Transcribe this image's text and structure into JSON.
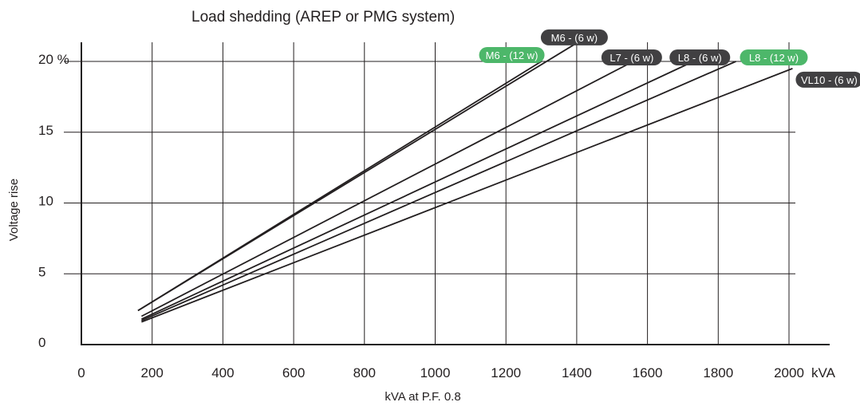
{
  "chart_data": {
    "type": "line",
    "title": "Load shedding (AREP or PMG system)",
    "xlabel": "kVA at P.F. 0.8",
    "ylabel": "Voltage rise",
    "x_unit": "kVA",
    "y_unit": "%",
    "xlim": [
      0,
      2100
    ],
    "ylim": [
      0,
      21
    ],
    "x_ticks": [
      "0",
      "200",
      "400",
      "600",
      "800",
      "1000",
      "1200",
      "1400",
      "1600",
      "1800",
      "2000"
    ],
    "y_ticks": [
      "0",
      "5",
      "10",
      "15",
      "20 %"
    ],
    "grid": true,
    "series": [
      {
        "name": "M6 - (12 w)",
        "color": "#4db76a",
        "x": [
          160,
          1300
        ],
        "y": [
          2.4,
          20.0
        ]
      },
      {
        "name": "M6 - (6 w)",
        "color": "#414042",
        "x": [
          160,
          1400
        ],
        "y": [
          2.4,
          21.3
        ]
      },
      {
        "name": "L7 - (6 w)",
        "color": "#414042",
        "x": [
          170,
          1560
        ],
        "y": [
          2.0,
          20.0
        ]
      },
      {
        "name": "L8 - (6 w)",
        "color": "#414042",
        "x": [
          170,
          1730
        ],
        "y": [
          1.8,
          20.0
        ]
      },
      {
        "name": "L8 - (12 w)",
        "color": "#4db76a",
        "x": [
          170,
          1850
        ],
        "y": [
          1.7,
          20.0
        ]
      },
      {
        "name": "VL10 - (6 w)",
        "color": "#414042",
        "x": [
          170,
          2010
        ],
        "y": [
          1.6,
          19.5
        ]
      }
    ]
  }
}
